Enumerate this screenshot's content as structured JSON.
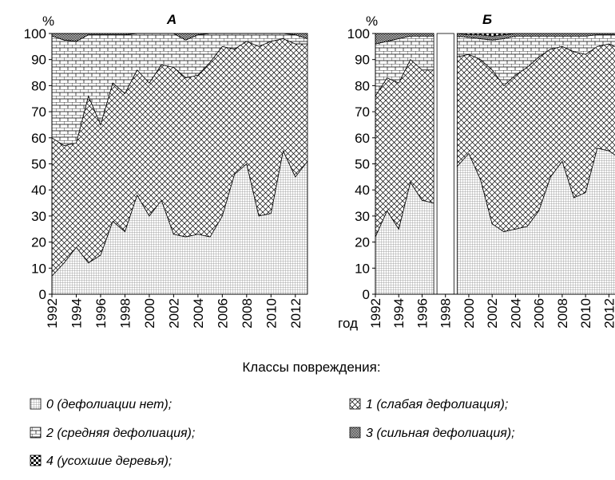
{
  "chart_data": [
    {
      "type": "stacked-area",
      "title": "А",
      "ylabel": "%",
      "x": [
        1992,
        1993,
        1994,
        1995,
        1996,
        1997,
        1998,
        1999,
        2000,
        2001,
        2002,
        2003,
        2004,
        2005,
        2006,
        2007,
        2008,
        2009,
        2010,
        2011,
        2012,
        2013
      ],
      "xlim": [
        1992,
        2013
      ],
      "xticks": [
        1992,
        1994,
        1996,
        1998,
        2000,
        2002,
        2004,
        2006,
        2008,
        2010,
        2012
      ],
      "ylim": [
        0,
        100
      ],
      "yticks": [
        0,
        10,
        20,
        30,
        40,
        50,
        60,
        70,
        80,
        90,
        100
      ],
      "series": [
        {
          "name": "0 (дефолиации  нет);",
          "color": "#000000",
          "values": [
            7,
            12,
            18,
            12,
            15,
            28,
            24,
            38,
            30,
            36,
            23,
            22,
            23,
            22,
            30,
            46,
            50,
            30,
            31,
            55,
            45,
            51
          ]
        },
        {
          "name": "1 (слабая  дефолиация);",
          "color": "#000000",
          "values": [
            53,
            45,
            40,
            64,
            50,
            53,
            53,
            48,
            51,
            52,
            64,
            61,
            61,
            67,
            65,
            48,
            47,
            65,
            66,
            43,
            51,
            45
          ]
        },
        {
          "name": "2 (средняя  дефолиация);",
          "color": "#000000",
          "values": [
            39,
            40.5,
            39,
            23.5,
            34.5,
            18.5,
            22.5,
            14,
            19,
            12,
            13,
            14.5,
            15.5,
            11,
            5,
            6,
            3,
            5,
            3,
            2,
            3.5,
            2
          ]
        },
        {
          "name": "3 (сильная  дефолиация);",
          "color": "#000000",
          "values": [
            1,
            2.5,
            3,
            0.5,
            0.5,
            0.5,
            0.5,
            0,
            0,
            0,
            0,
            2.5,
            0.5,
            0,
            0,
            0,
            0,
            0,
            0,
            0,
            0.5,
            2
          ]
        },
        {
          "name": "4 (усохшие деревья);",
          "color": "#000000",
          "values": [
            0,
            0,
            0,
            0,
            0,
            0,
            0,
            0,
            0,
            0,
            0,
            0,
            0,
            0,
            0,
            0,
            0,
            0,
            0,
            0,
            0,
            0
          ]
        }
      ]
    },
    {
      "type": "stacked-area",
      "title": "Б",
      "ylabel": "%",
      "xlabel": "год",
      "x": [
        1992,
        1993,
        1994,
        1995,
        1996,
        1997,
        1998,
        1999,
        2000,
        2001,
        2002,
        2003,
        2004,
        2005,
        2006,
        2007,
        2008,
        2009,
        2010,
        2011,
        2012,
        2013
      ],
      "xlim": [
        1992,
        2013
      ],
      "xticks": [
        1992,
        1994,
        1996,
        1998,
        2000,
        2002,
        2004,
        2006,
        2008,
        2010,
        2012
      ],
      "ylim": [
        0,
        100
      ],
      "yticks": [
        0,
        10,
        20,
        30,
        40,
        50,
        60,
        70,
        80,
        90,
        100
      ],
      "series": [
        {
          "name": "0 (дефолиации  нет);",
          "color": "#000000",
          "values": [
            22,
            32,
            25,
            43,
            36,
            35,
            null,
            49,
            54,
            44,
            27,
            24,
            25,
            26,
            32,
            45,
            51,
            37,
            39,
            56,
            55,
            52
          ]
        },
        {
          "name": "1 (слабая  дефолиация);",
          "color": "#000000",
          "values": [
            54,
            51,
            56,
            47,
            50,
            51,
            null,
            42,
            38,
            46,
            59,
            56,
            59,
            61,
            59,
            49,
            44,
            56,
            53,
            39,
            41,
            42
          ]
        },
        {
          "name": "2 (средняя  дефолиация);",
          "color": "#000000",
          "values": [
            20,
            14,
            17,
            9,
            13,
            13,
            null,
            8,
            6.5,
            8,
            11.5,
            18,
            15,
            12,
            8,
            5,
            4,
            6,
            7,
            4.5,
            3.5,
            5.5
          ]
        },
        {
          "name": "3 (сильная  дефолиация);",
          "color": "#000000",
          "values": [
            4,
            3,
            2,
            1,
            1,
            1,
            null,
            1,
            1,
            1.5,
            1.5,
            1.5,
            1,
            1,
            1,
            1,
            1,
            1,
            1,
            0.5,
            0.5,
            0.5
          ]
        },
        {
          "name": "4 (усохшие деревья);",
          "color": "#000000",
          "values": [
            0,
            0,
            0,
            0,
            0,
            0,
            null,
            0,
            0.5,
            0.5,
            1,
            0.5,
            0,
            0,
            0,
            0,
            0,
            0,
            0,
            0,
            0,
            0
          ]
        }
      ]
    }
  ],
  "legend": {
    "title": "Классы повреждения:"
  }
}
